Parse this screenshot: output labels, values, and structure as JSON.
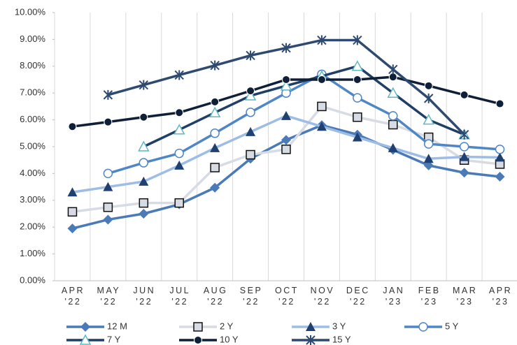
{
  "chart_data": {
    "type": "line",
    "categories": [
      "APR '22",
      "MAY '22",
      "JUN '22",
      "JUL '22",
      "AUG '22",
      "SEP '22",
      "OCT '22",
      "NOV '22",
      "DEC '22",
      "JAN '23",
      "FEB '23",
      "MAR '23",
      "APR '23"
    ],
    "ylim": [
      0,
      10
    ],
    "yticks": [
      {
        "value": 0,
        "label": "0.00%"
      },
      {
        "value": 1,
        "label": "1.00%"
      },
      {
        "value": 2,
        "label": "2.00%"
      },
      {
        "value": 3,
        "label": "3.00%"
      },
      {
        "value": 4,
        "label": "4.00%"
      },
      {
        "value": 5,
        "label": "5.00%"
      },
      {
        "value": 6,
        "label": "6.00%"
      },
      {
        "value": 7,
        "label": "7.00%"
      },
      {
        "value": 8,
        "label": "8.00%"
      },
      {
        "value": 9,
        "label": "9.00%"
      },
      {
        "value": 10,
        "label": "10.00%"
      }
    ],
    "grid": false,
    "legend": "bottom",
    "series": [
      {
        "name": "12 M",
        "color": "#4a7ab8",
        "marker": "diamond",
        "values": [
          1.95,
          2.28,
          2.5,
          2.85,
          3.47,
          4.55,
          5.25,
          5.8,
          5.45,
          4.88,
          4.3,
          4.03,
          3.88
        ]
      },
      {
        "name": "2 Y",
        "color": "#d6dbe4",
        "marker": "square",
        "values": [
          2.57,
          2.74,
          2.9,
          2.9,
          4.22,
          4.7,
          4.9,
          6.5,
          6.1,
          5.82,
          5.35,
          4.5,
          4.35
        ]
      },
      {
        "name": "3 Y",
        "color": "#9dbde6",
        "marker": "triangle",
        "values": [
          3.3,
          3.5,
          3.7,
          4.3,
          4.95,
          5.55,
          6.15,
          5.75,
          5.35,
          4.95,
          4.55,
          4.62,
          4.6
        ]
      },
      {
        "name": "5 Y",
        "color": "#4f86c6",
        "marker": "circle",
        "values": [
          null,
          4.0,
          4.4,
          4.75,
          5.5,
          6.28,
          7.0,
          7.7,
          6.82,
          6.15,
          5.1,
          5.0,
          4.9
        ]
      },
      {
        "name": "7 Y",
        "color": "#1f3f66",
        "marker": "opentriangle",
        "values": [
          null,
          null,
          5.0,
          5.63,
          6.27,
          6.9,
          7.27,
          7.63,
          8.0,
          7.0,
          6.0,
          5.45,
          null
        ]
      },
      {
        "name": "10 Y",
        "color": "#0f1f38",
        "marker": "dot",
        "values": [
          5.75,
          5.92,
          6.1,
          6.27,
          6.67,
          7.08,
          7.5,
          7.5,
          7.5,
          7.6,
          7.27,
          6.93,
          6.6
        ]
      },
      {
        "name": "15 Y",
        "color": "#2e4a70",
        "marker": "star",
        "values": [
          null,
          6.93,
          7.3,
          7.67,
          8.03,
          8.4,
          8.68,
          8.97,
          8.97,
          7.88,
          6.8,
          5.45,
          null
        ]
      }
    ]
  }
}
